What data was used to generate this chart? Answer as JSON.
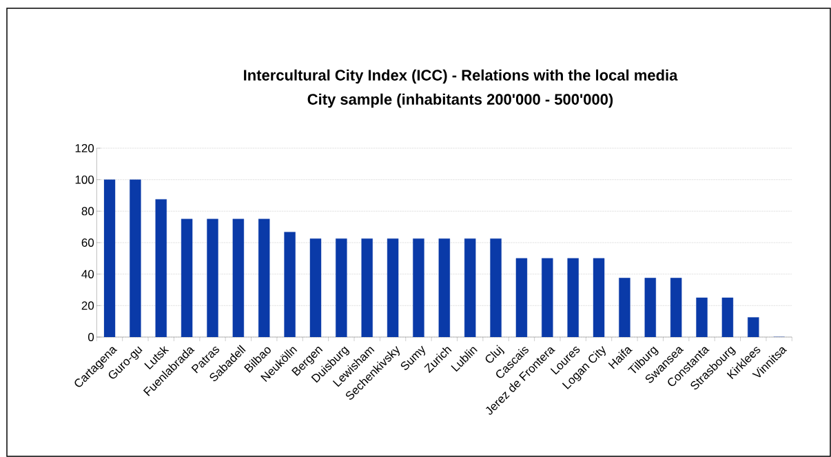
{
  "chart_data": {
    "type": "bar",
    "title": "Intercultural City Index (ICC) - Relations with the  local media",
    "subtitle": "City sample (inhabitants 200'000 - 500'000)",
    "categories": [
      "Cartagena",
      "Guro-gu",
      "Lutsk",
      "Fuenlabrada",
      "Patras",
      "Sabadell",
      "Bilbao",
      "Neukölln",
      "Bergen",
      "Duisburg",
      "Lewisham",
      "Sechenkivsky",
      "Sumy",
      "Zurich",
      "Lublin",
      "Cluj",
      "Cascais",
      "Jerez de Frontera",
      "Loures",
      "Logan City",
      "Haifa",
      "Tilburg",
      "Swansea",
      "Constanta",
      "Strasbourg",
      "Kirklees",
      "Vinnitsa"
    ],
    "values": [
      100,
      100,
      87.5,
      75,
      75,
      75,
      75,
      66.7,
      62.5,
      62.5,
      62.5,
      62.5,
      62.5,
      62.5,
      62.5,
      62.5,
      50,
      50,
      50,
      50,
      37.5,
      37.5,
      37.5,
      25,
      25,
      12.5,
      0
    ],
    "color": "#0a3aa8",
    "ylim": [
      0,
      120
    ],
    "yticks": [
      0,
      20,
      40,
      60,
      80,
      100,
      120
    ],
    "grid": "y"
  }
}
